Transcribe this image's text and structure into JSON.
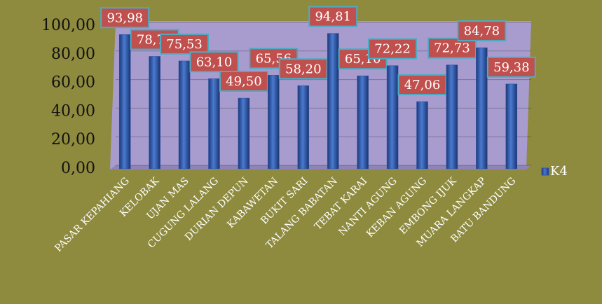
{
  "chart_data": {
    "type": "bar",
    "categories": [
      "PASAR KEPAHIANG",
      "KELOBAK",
      "UJAN MAS",
      "CUGUNG LALANG",
      "DURIAN DEPUN",
      "KABAWETAN",
      "BUKIT SARI",
      "TALANG  BABATAN",
      "TEBAT KARAI",
      "NANTI AGUNG",
      "KEBAN AGUNG",
      "EMBONG IJUK",
      "MUARA LANGKAP",
      "BATU BANDUNG"
    ],
    "series": [
      {
        "name": "K4",
        "color": "#2f56a8",
        "values": [
          93.98,
          78.7,
          75.53,
          63.1,
          49.5,
          65.56,
          58.2,
          94.81,
          65.1,
          72.22,
          47.06,
          72.73,
          84.78,
          59.38
        ],
        "value_labels": [
          "93,98",
          "78,70",
          "75,53",
          "63,10",
          "49,50",
          "65,56",
          "58,20",
          "94,81",
          "65,10",
          "72,22",
          "47,06",
          "72,73",
          "84,78",
          "59,38"
        ]
      }
    ],
    "ylim": [
      0,
      100
    ],
    "yticks": [
      {
        "value": 0,
        "label": "0,00"
      },
      {
        "value": 20,
        "label": "20,00"
      },
      {
        "value": 40,
        "label": "40,00"
      },
      {
        "value": 60,
        "label": "60,00"
      },
      {
        "value": 80,
        "label": "80,00"
      },
      {
        "value": 100,
        "label": "100,00"
      }
    ],
    "grid": true,
    "legend": "right"
  }
}
